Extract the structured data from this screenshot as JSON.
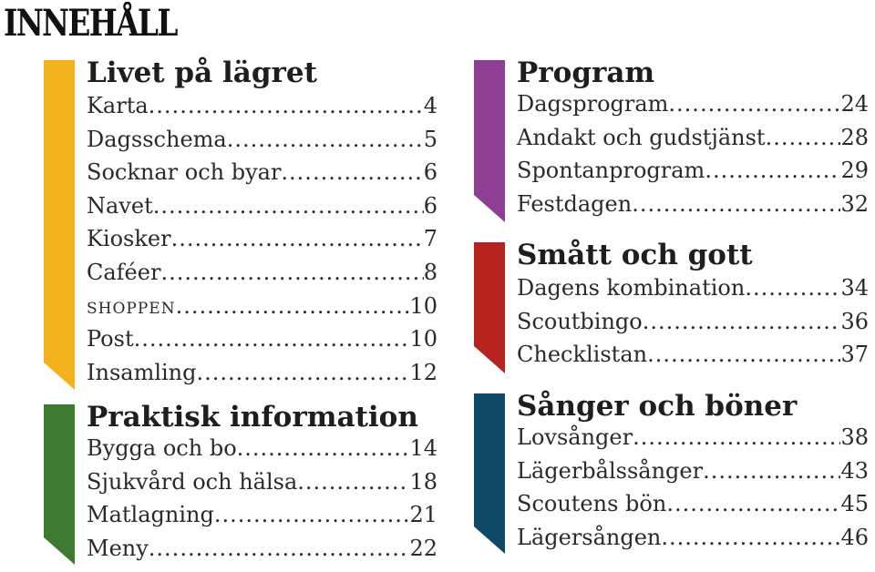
{
  "title": "INNEHÅLL",
  "sections": [
    {
      "title": "Livet på lägret",
      "color": "#f2b21b",
      "items": [
        {
          "label": "Karta",
          "page": "4"
        },
        {
          "label": "Dagsschema",
          "page": "5"
        },
        {
          "label": "Socknar och byar",
          "page": "6"
        },
        {
          "label": "Navet",
          "page": "6"
        },
        {
          "label": "Kiosker",
          "page": "7"
        },
        {
          "label": "Caféer",
          "page": "8"
        },
        {
          "label": "shoppen",
          "page": "10"
        },
        {
          "label": "Post",
          "page": "10"
        },
        {
          "label": "Insamling",
          "page": "12"
        }
      ]
    },
    {
      "title": "Praktisk information",
      "color": "#3f7a32",
      "items": [
        {
          "label": "Bygga och bo",
          "page": "14"
        },
        {
          "label": "Sjukvård och hälsa",
          "page": "18"
        },
        {
          "label": "Matlagning",
          "page": "21"
        },
        {
          "label": "Meny",
          "page": "22"
        }
      ]
    },
    {
      "title": "Program",
      "color": "#8e3f94",
      "items": [
        {
          "label": "Dagsprogram",
          "page": "24"
        },
        {
          "label": "Andakt och gudstjänst",
          "page": "28"
        },
        {
          "label": "Spontanprogram",
          "page": "29"
        },
        {
          "label": "Festdagen",
          "page": "32"
        }
      ]
    },
    {
      "title": "Smått och gott",
      "color": "#b5241f",
      "items": [
        {
          "label": "Dagens kombination",
          "page": "34"
        },
        {
          "label": "Scoutbingo",
          "page": "36"
        },
        {
          "label": "Checklistan",
          "page": "37"
        }
      ]
    },
    {
      "title": "Sånger och böner",
      "color": "#0e4a66",
      "items": [
        {
          "label": "Lovsånger",
          "page": "38"
        },
        {
          "label": "Lägerbålssånger",
          "page": "43"
        },
        {
          "label": "Scoutens bön",
          "page": "45"
        },
        {
          "label": "Lägersången",
          "page": "46"
        }
      ]
    }
  ]
}
